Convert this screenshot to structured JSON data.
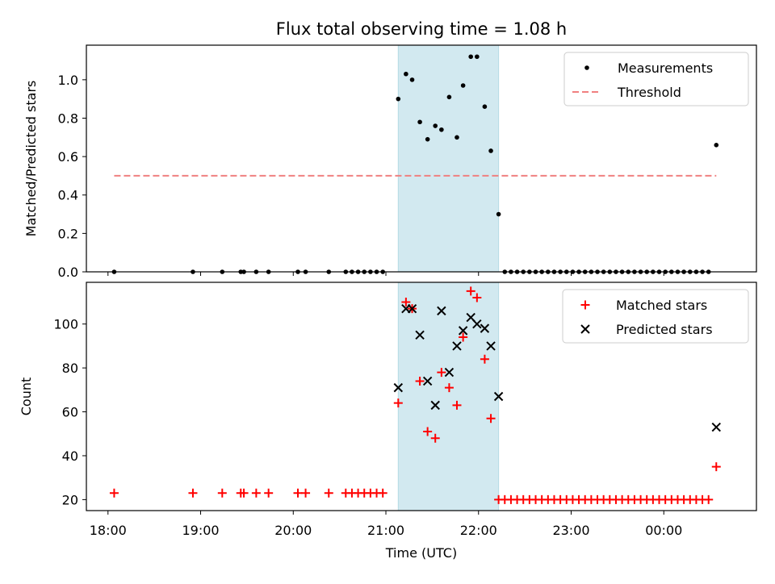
{
  "figure": {
    "title": "Flux total observing time = 1.08 h"
  },
  "chart_data": [
    {
      "type": "scatter",
      "panel": "top",
      "ylabel": "Matched/Predicted stars",
      "xlabel": "",
      "x_ticks": [
        "18:00",
        "19:00",
        "20:00",
        "21:00",
        "22:00",
        "23:00",
        "00:00"
      ],
      "y_ticks": [
        "0.0",
        "0.2",
        "0.4",
        "0.6",
        "0.8",
        "1.0"
      ],
      "xlim": [
        "17:46",
        "01:00"
      ],
      "ylim": [
        0,
        1.18
      ],
      "legend_position": "top-right",
      "highlight_span": {
        "start": "21:08",
        "end": "22:13",
        "color": "#d2e9f0"
      },
      "series": [
        {
          "name": "Measurements",
          "marker": "dot",
          "color": "#000000",
          "points": [
            [
              "18:04",
              0
            ],
            [
              "18:55",
              0
            ],
            [
              "19:14",
              0
            ],
            [
              "19:26",
              0
            ],
            [
              "19:28",
              0
            ],
            [
              "19:36",
              0
            ],
            [
              "19:44",
              0
            ],
            [
              "20:03",
              0
            ],
            [
              "20:08",
              0
            ],
            [
              "20:23",
              0
            ],
            [
              "20:34",
              0
            ],
            [
              "20:38",
              0
            ],
            [
              "20:42",
              0
            ],
            [
              "20:46",
              0
            ],
            [
              "20:50",
              0
            ],
            [
              "20:54",
              0
            ],
            [
              "20:58",
              0
            ],
            [
              "21:08",
              0.9
            ],
            [
              "21:13",
              1.03
            ],
            [
              "21:17",
              1.0
            ],
            [
              "21:22",
              0.78
            ],
            [
              "21:27",
              0.69
            ],
            [
              "21:32",
              0.76
            ],
            [
              "21:36",
              0.74
            ],
            [
              "21:41",
              0.91
            ],
            [
              "21:46",
              0.7
            ],
            [
              "21:50",
              0.97
            ],
            [
              "21:55",
              1.12
            ],
            [
              "21:59",
              1.12
            ],
            [
              "22:04",
              0.86
            ],
            [
              "22:08",
              0.63
            ],
            [
              "22:13",
              0.3
            ],
            [
              "22:17",
              0
            ],
            [
              "22:21",
              0
            ],
            [
              "22:25",
              0
            ],
            [
              "22:29",
              0
            ],
            [
              "22:33",
              0
            ],
            [
              "22:37",
              0
            ],
            [
              "22:41",
              0
            ],
            [
              "22:45",
              0
            ],
            [
              "22:49",
              0
            ],
            [
              "22:53",
              0
            ],
            [
              "22:57",
              0
            ],
            [
              "23:01",
              0
            ],
            [
              "23:05",
              0
            ],
            [
              "23:09",
              0
            ],
            [
              "23:13",
              0
            ],
            [
              "23:17",
              0
            ],
            [
              "23:21",
              0
            ],
            [
              "23:25",
              0
            ],
            [
              "23:29",
              0
            ],
            [
              "23:33",
              0
            ],
            [
              "23:37",
              0
            ],
            [
              "23:41",
              0
            ],
            [
              "23:45",
              0
            ],
            [
              "23:49",
              0
            ],
            [
              "23:53",
              0
            ],
            [
              "23:57",
              0
            ],
            [
              "00:01",
              0
            ],
            [
              "00:05",
              0
            ],
            [
              "00:09",
              0
            ],
            [
              "00:13",
              0
            ],
            [
              "00:17",
              0
            ],
            [
              "00:21",
              0
            ],
            [
              "00:25",
              0
            ],
            [
              "00:29",
              0
            ],
            [
              "00:34",
              0.66
            ]
          ]
        },
        {
          "name": "Threshold",
          "line": "dashed",
          "color": "#f08080",
          "points": [
            [
              "18:04",
              0.5
            ],
            [
              "00:34",
              0.5
            ]
          ]
        }
      ]
    },
    {
      "type": "scatter",
      "panel": "bottom",
      "ylabel": "Count",
      "xlabel": "Time (UTC)",
      "x_ticks": [
        "18:00",
        "19:00",
        "20:00",
        "21:00",
        "22:00",
        "23:00",
        "00:00"
      ],
      "y_ticks": [
        "20",
        "40",
        "60",
        "80",
        "100"
      ],
      "xlim": [
        "17:46",
        "01:00"
      ],
      "ylim": [
        15,
        119
      ],
      "legend_position": "top-right",
      "highlight_span": {
        "start": "21:08",
        "end": "22:13",
        "color": "#d2e9f0"
      },
      "series": [
        {
          "name": "Matched stars",
          "marker": "plus",
          "color": "#ff0000",
          "points": [
            [
              "18:04",
              23
            ],
            [
              "18:55",
              23
            ],
            [
              "19:14",
              23
            ],
            [
              "19:26",
              23
            ],
            [
              "19:28",
              23
            ],
            [
              "19:36",
              23
            ],
            [
              "19:44",
              23
            ],
            [
              "20:03",
              23
            ],
            [
              "20:08",
              23
            ],
            [
              "20:23",
              23
            ],
            [
              "20:34",
              23
            ],
            [
              "20:38",
              23
            ],
            [
              "20:42",
              23
            ],
            [
              "20:46",
              23
            ],
            [
              "20:50",
              23
            ],
            [
              "20:54",
              23
            ],
            [
              "20:58",
              23
            ],
            [
              "21:08",
              64
            ],
            [
              "21:13",
              110
            ],
            [
              "21:17",
              107
            ],
            [
              "21:22",
              74
            ],
            [
              "21:27",
              51
            ],
            [
              "21:32",
              48
            ],
            [
              "21:36",
              78
            ],
            [
              "21:41",
              71
            ],
            [
              "21:46",
              63
            ],
            [
              "21:50",
              94
            ],
            [
              "21:55",
              115
            ],
            [
              "21:59",
              112
            ],
            [
              "22:04",
              84
            ],
            [
              "22:08",
              57
            ],
            [
              "22:13",
              20
            ],
            [
              "22:17",
              20
            ],
            [
              "22:21",
              20
            ],
            [
              "22:25",
              20
            ],
            [
              "22:29",
              20
            ],
            [
              "22:33",
              20
            ],
            [
              "22:37",
              20
            ],
            [
              "22:41",
              20
            ],
            [
              "22:45",
              20
            ],
            [
              "22:49",
              20
            ],
            [
              "22:53",
              20
            ],
            [
              "22:57",
              20
            ],
            [
              "23:01",
              20
            ],
            [
              "23:05",
              20
            ],
            [
              "23:09",
              20
            ],
            [
              "23:13",
              20
            ],
            [
              "23:17",
              20
            ],
            [
              "23:21",
              20
            ],
            [
              "23:25",
              20
            ],
            [
              "23:29",
              20
            ],
            [
              "23:33",
              20
            ],
            [
              "23:37",
              20
            ],
            [
              "23:41",
              20
            ],
            [
              "23:45",
              20
            ],
            [
              "23:49",
              20
            ],
            [
              "23:53",
              20
            ],
            [
              "23:57",
              20
            ],
            [
              "00:01",
              20
            ],
            [
              "00:05",
              20
            ],
            [
              "00:09",
              20
            ],
            [
              "00:13",
              20
            ],
            [
              "00:17",
              20
            ],
            [
              "00:21",
              20
            ],
            [
              "00:25",
              20
            ],
            [
              "00:29",
              20
            ],
            [
              "00:34",
              35
            ]
          ]
        },
        {
          "name": "Predicted stars",
          "marker": "x",
          "color": "#000000",
          "points": [
            [
              "21:08",
              71
            ],
            [
              "21:13",
              107
            ],
            [
              "21:17",
              107
            ],
            [
              "21:22",
              95
            ],
            [
              "21:27",
              74
            ],
            [
              "21:32",
              63
            ],
            [
              "21:36",
              106
            ],
            [
              "21:41",
              78
            ],
            [
              "21:46",
              90
            ],
            [
              "21:50",
              97
            ],
            [
              "21:55",
              103
            ],
            [
              "21:59",
              100
            ],
            [
              "22:04",
              98
            ],
            [
              "22:08",
              90
            ],
            [
              "22:13",
              67
            ],
            [
              "00:34",
              53
            ]
          ]
        }
      ]
    }
  ]
}
